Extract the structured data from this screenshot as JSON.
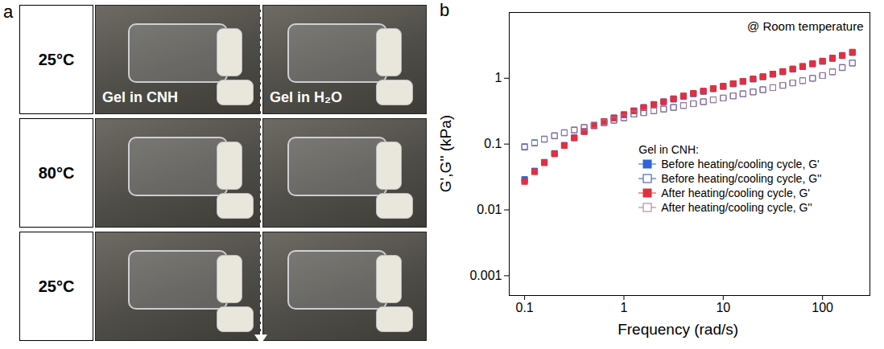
{
  "panel_a": {
    "letter": "a",
    "rows": [
      "25°C",
      "80°C",
      "25°C"
    ],
    "columns": [
      "Gel in CNH",
      "Gel in H₂O"
    ]
  },
  "chart_data": {
    "type": "scatter",
    "panel_label": "b",
    "annotations": [
      "@ Room temperature"
    ],
    "x_label": "Frequency (rad/s)",
    "y_label": "G',G'' (kPa)",
    "log": true,
    "xlim": [
      0.07,
      300
    ],
    "xticks": [
      0.1,
      1,
      10,
      100
    ],
    "ylim": [
      0.0005,
      10
    ],
    "yticks": [
      0.001,
      0.01,
      0.1,
      1
    ],
    "legend": "bottom-right",
    "legend_title": "Gel in CNH:",
    "x": [
      0.1,
      0.126,
      0.158,
      0.2,
      0.251,
      0.316,
      0.398,
      0.501,
      0.631,
      0.794,
      1,
      1.26,
      1.58,
      2,
      2.51,
      3.16,
      3.98,
      5.01,
      6.31,
      7.94,
      10,
      12.6,
      15.8,
      20,
      25.1,
      31.6,
      39.8,
      50.1,
      63.1,
      79.4,
      100,
      126,
      158,
      200
    ],
    "series": [
      {
        "name": "Before heating/cooling cycle, G'",
        "color": "#2f64d6",
        "marker": "filled-square",
        "values": [
          0.029,
          0.039,
          0.053,
          0.072,
          0.096,
          0.125,
          0.155,
          0.19,
          0.22,
          0.25,
          0.28,
          0.32,
          0.36,
          0.4,
          0.44,
          0.48,
          0.53,
          0.58,
          0.63,
          0.69,
          0.75,
          0.82,
          0.89,
          0.97,
          1.05,
          1.15,
          1.25,
          1.37,
          1.5,
          1.65,
          1.8,
          2.0,
          2.2,
          2.45
        ]
      },
      {
        "name": "Before heating/cooling cycle, G''",
        "color": "#2f4fb0",
        "marker": "open-square",
        "values": [
          0.09,
          0.104,
          0.118,
          0.133,
          0.148,
          0.163,
          0.178,
          0.193,
          0.21,
          0.23,
          0.25,
          0.285,
          0.3,
          0.32,
          0.34,
          0.36,
          0.385,
          0.41,
          0.44,
          0.47,
          0.5,
          0.54,
          0.58,
          0.62,
          0.67,
          0.72,
          0.78,
          0.85,
          0.92,
          1.0,
          1.1,
          1.25,
          1.45,
          1.7
        ]
      },
      {
        "name": "After heating/cooling cycle, G'",
        "color": "#e03040",
        "marker": "filled-square",
        "values": [
          0.027,
          0.038,
          0.052,
          0.071,
          0.095,
          0.124,
          0.155,
          0.19,
          0.22,
          0.25,
          0.28,
          0.32,
          0.36,
          0.4,
          0.44,
          0.49,
          0.54,
          0.59,
          0.64,
          0.7,
          0.76,
          0.83,
          0.9,
          0.98,
          1.06,
          1.16,
          1.27,
          1.39,
          1.52,
          1.67,
          1.83,
          2.03,
          2.23,
          2.5
        ]
      },
      {
        "name": "After heating/cooling cycle, G''",
        "color": "#a07a95",
        "marker": "open-square",
        "values": [
          0.092,
          0.106,
          0.12,
          0.135,
          0.15,
          0.165,
          0.18,
          0.195,
          0.212,
          0.232,
          0.252,
          0.287,
          0.3,
          0.322,
          0.342,
          0.362,
          0.387,
          0.412,
          0.442,
          0.472,
          0.502,
          0.542,
          0.582,
          0.622,
          0.672,
          0.722,
          0.782,
          0.852,
          0.922,
          1.0,
          1.1,
          1.26,
          1.47,
          1.72
        ]
      }
    ]
  }
}
